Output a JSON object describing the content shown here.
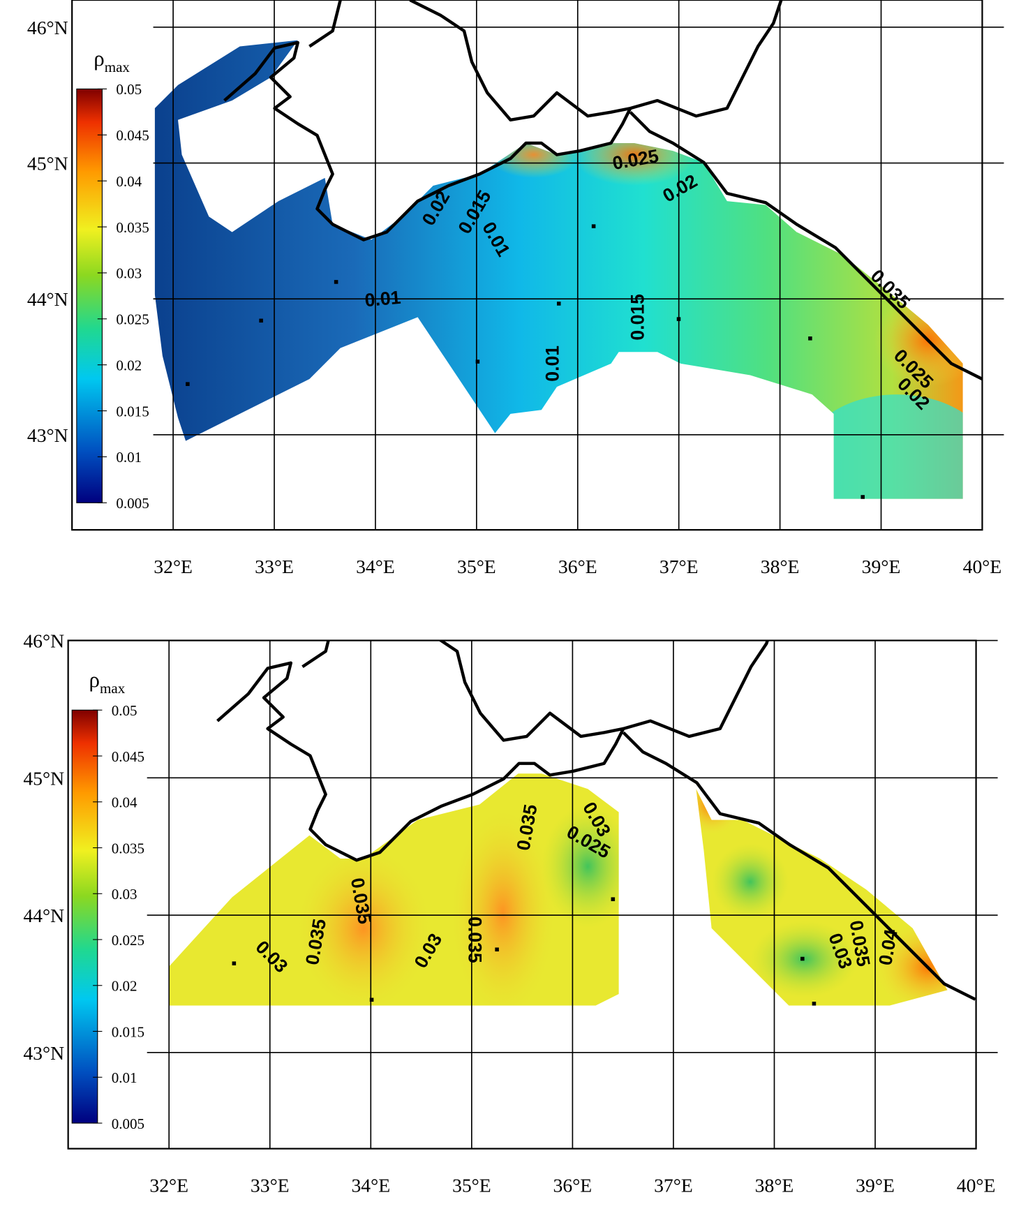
{
  "panels": [
    {
      "xlim": [
        31,
        40
      ],
      "ylim": [
        42.3,
        46.2
      ],
      "lon_ticks": [
        {
          "value": 32,
          "label": "32°E"
        },
        {
          "value": 33,
          "label": "33°E"
        },
        {
          "value": 34,
          "label": "34°E"
        },
        {
          "value": 35,
          "label": "35°E"
        },
        {
          "value": 36,
          "label": "36°E"
        },
        {
          "value": 37,
          "label": "37°E"
        },
        {
          "value": 38,
          "label": "38°E"
        },
        {
          "value": 39,
          "label": "39°E"
        },
        {
          "value": 40,
          "label": "40°E"
        }
      ],
      "lat_ticks": [
        {
          "value": 43,
          "label": "43°N"
        },
        {
          "value": 44,
          "label": "44°N"
        },
        {
          "value": 45,
          "label": "45°N"
        },
        {
          "value": 46,
          "label": "46°N"
        }
      ],
      "colorbar": {
        "symbol": "ρ",
        "subscript": "max",
        "lim": [
          0.005,
          0.05
        ],
        "ticks": [
          0.005,
          0.01,
          0.015,
          0.02,
          0.025,
          0.03,
          0.035,
          0.04,
          0.045,
          0.05
        ]
      },
      "contour_labels": [
        "0.025",
        "0.02",
        "0.02",
        "0.015",
        "0.01",
        "0.01",
        "0.015",
        "0.01",
        "0.035",
        "0.025",
        "0.02"
      ]
    },
    {
      "xlim": [
        31,
        40
      ],
      "ylim": [
        42.3,
        46
      ],
      "lon_ticks": [
        {
          "value": 32,
          "label": "32°E"
        },
        {
          "value": 33,
          "label": "33°E"
        },
        {
          "value": 34,
          "label": "34°E"
        },
        {
          "value": 35,
          "label": "35°E"
        },
        {
          "value": 36,
          "label": "36°E"
        },
        {
          "value": 37,
          "label": "37°E"
        },
        {
          "value": 38,
          "label": "38°E"
        },
        {
          "value": 39,
          "label": "39°E"
        },
        {
          "value": 40,
          "label": "40°E"
        }
      ],
      "lat_ticks": [
        {
          "value": 43,
          "label": "43°N"
        },
        {
          "value": 44,
          "label": "44°N"
        },
        {
          "value": 45,
          "label": "45°N"
        },
        {
          "value": 46,
          "label": "46°N"
        }
      ],
      "colorbar": {
        "symbol": "ρ",
        "subscript": "max",
        "lim": [
          0.005,
          0.05
        ],
        "ticks": [
          0.005,
          0.01,
          0.015,
          0.02,
          0.025,
          0.03,
          0.035,
          0.04,
          0.045,
          0.05
        ]
      },
      "contour_labels": [
        "0.03",
        "0.025",
        "0.035",
        "0.035",
        "0.035",
        "0.03",
        "0.03",
        "0.035",
        "0.035",
        "0.03",
        "0.04"
      ]
    }
  ]
}
